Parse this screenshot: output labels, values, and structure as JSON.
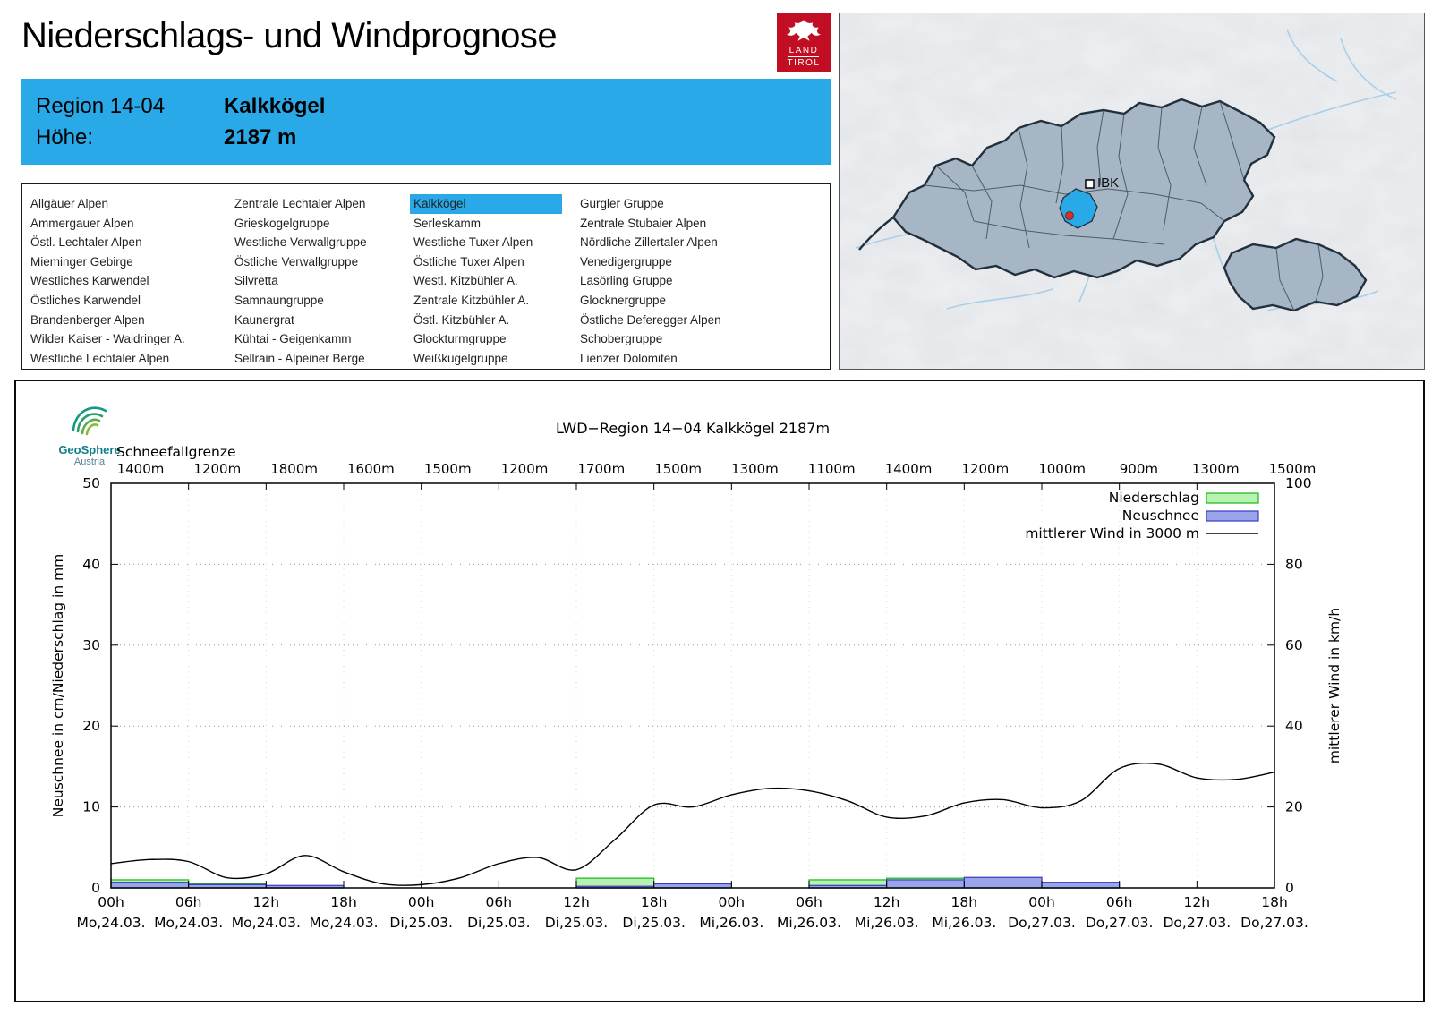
{
  "page_title": "Niederschlags- und Windprognose",
  "brand": {
    "land_tirol": {
      "line1": "LAND",
      "line2": "TIROL"
    },
    "geosphere": {
      "line1": "GeoSphere",
      "line2": "Austria"
    }
  },
  "map": {
    "city_label": "IBK"
  },
  "region_header": {
    "region_label": "Region 14-04",
    "region_name": "Kalkkögel",
    "altitude_label": "Höhe:",
    "altitude_value": "2187 m"
  },
  "region_list": {
    "selected": "Kalkkögel",
    "columns": [
      [
        "Allgäuer Alpen",
        "Ammergauer Alpen",
        "Östl. Lechtaler Alpen",
        "Mieminger Gebirge",
        "Westliches Karwendel",
        "Östliches Karwendel",
        "Brandenberger Alpen",
        "Wilder Kaiser - Waidringer A.",
        "Westliche Lechtaler Alpen"
      ],
      [
        "Zentrale Lechtaler Alpen",
        "Grieskogelgruppe",
        "Westliche Verwallgruppe",
        "Östliche Verwallgruppe",
        "Silvretta",
        "Samnaungruppe",
        "Kaunergrat",
        "Kühtai - Geigenkamm",
        "Sellrain - Alpeiner Berge"
      ],
      [
        "Kalkkögel",
        "Serleskamm",
        "Westliche Tuxer Alpen",
        "Östliche Tuxer Alpen",
        "Westl. Kitzbühler A.",
        "Zentrale Kitzbühler A.",
        "Östl. Kitzbühler A.",
        "Glockturmgruppe",
        "Weißkugelgruppe"
      ],
      [
        "Gurgler Gruppe",
        "Zentrale Stubaier Alpen",
        "Nördliche Zillertaler Alpen",
        "Venedigergruppe",
        "Lasörling Gruppe",
        "Glocknergruppe",
        "Östliche Deferegger Alpen",
        "Schobergruppe",
        "Lienzer Dolomiten"
      ]
    ]
  },
  "chart_data": {
    "type": "bar",
    "title": "LWD−Region 14−04 Kalkkögel 2187m",
    "snowline": {
      "label": "Schneefallgrenze",
      "values": [
        "1400m",
        "1200m",
        "1800m",
        "1600m",
        "1500m",
        "1200m",
        "1700m",
        "1500m",
        "1300m",
        "1100m",
        "1400m",
        "1200m",
        "1000m",
        "900m",
        "1300m",
        "1500m"
      ]
    },
    "x_ticks": [
      {
        "hour": "00h",
        "date": "Mo,24.03."
      },
      {
        "hour": "06h",
        "date": "Mo,24.03."
      },
      {
        "hour": "12h",
        "date": "Mo,24.03."
      },
      {
        "hour": "18h",
        "date": "Mo,24.03."
      },
      {
        "hour": "00h",
        "date": "Di,25.03."
      },
      {
        "hour": "06h",
        "date": "Di,25.03."
      },
      {
        "hour": "12h",
        "date": "Di,25.03."
      },
      {
        "hour": "18h",
        "date": "Di,25.03."
      },
      {
        "hour": "00h",
        "date": "Mi,26.03."
      },
      {
        "hour": "06h",
        "date": "Mi,26.03."
      },
      {
        "hour": "12h",
        "date": "Mi,26.03."
      },
      {
        "hour": "18h",
        "date": "Mi,26.03."
      },
      {
        "hour": "00h",
        "date": "Do,27.03."
      },
      {
        "hour": "06h",
        "date": "Do,27.03."
      },
      {
        "hour": "12h",
        "date": "Do,27.03."
      },
      {
        "hour": "18h",
        "date": "Do,27.03."
      }
    ],
    "axes": {
      "left_label": "Neuschnee in cm/Niederschlag in mm",
      "right_label": "mittlerer Wind in km/h",
      "left_ticks": [
        0,
        10,
        20,
        30,
        40,
        50
      ],
      "right_ticks": [
        0,
        20,
        40,
        60,
        80,
        100
      ],
      "left_range": [
        0,
        50
      ],
      "right_range": [
        0,
        100
      ],
      "hours_range": [
        0,
        90
      ],
      "grid": true
    },
    "legend": [
      {
        "label": "Niederschlag",
        "swatch": "bar",
        "fill": "#b7f2b0",
        "stroke": "#15b815"
      },
      {
        "label": "Neuschnee",
        "swatch": "bar",
        "fill": "#9aa4e8",
        "stroke": "#3a3ac4"
      },
      {
        "label": "mittlerer Wind in 3000 m",
        "swatch": "line",
        "stroke": "#000000"
      }
    ],
    "interval_hours": 6,
    "precipitation_mm": [
      1.0,
      0.5,
      0.2,
      0,
      0,
      0,
      1.2,
      0.3,
      0,
      1.0,
      1.2,
      1.2,
      0.2,
      0,
      0
    ],
    "new_snow_cm": [
      0.7,
      0.4,
      0.3,
      0,
      0,
      0,
      0.2,
      0.5,
      0,
      0.3,
      1.0,
      1.3,
      0.7,
      0,
      0
    ],
    "wind_kmh": {
      "hours": [
        0,
        3,
        6,
        9,
        12,
        15,
        18,
        21,
        24,
        27,
        30,
        33,
        36,
        39,
        42,
        45,
        48,
        51,
        54,
        57,
        60,
        63,
        66,
        69,
        72,
        75,
        78,
        81,
        84,
        87,
        90
      ],
      "values": [
        6,
        7,
        6.5,
        2.5,
        3.5,
        8,
        4,
        1,
        0.8,
        2.5,
        6,
        7.5,
        4.5,
        12,
        20.5,
        20,
        23,
        24.6,
        24,
        21.5,
        17.5,
        17.8,
        21,
        21.8,
        19.8,
        21.5,
        29.5,
        30.6,
        27.2,
        26.8,
        28.6
      ]
    }
  }
}
